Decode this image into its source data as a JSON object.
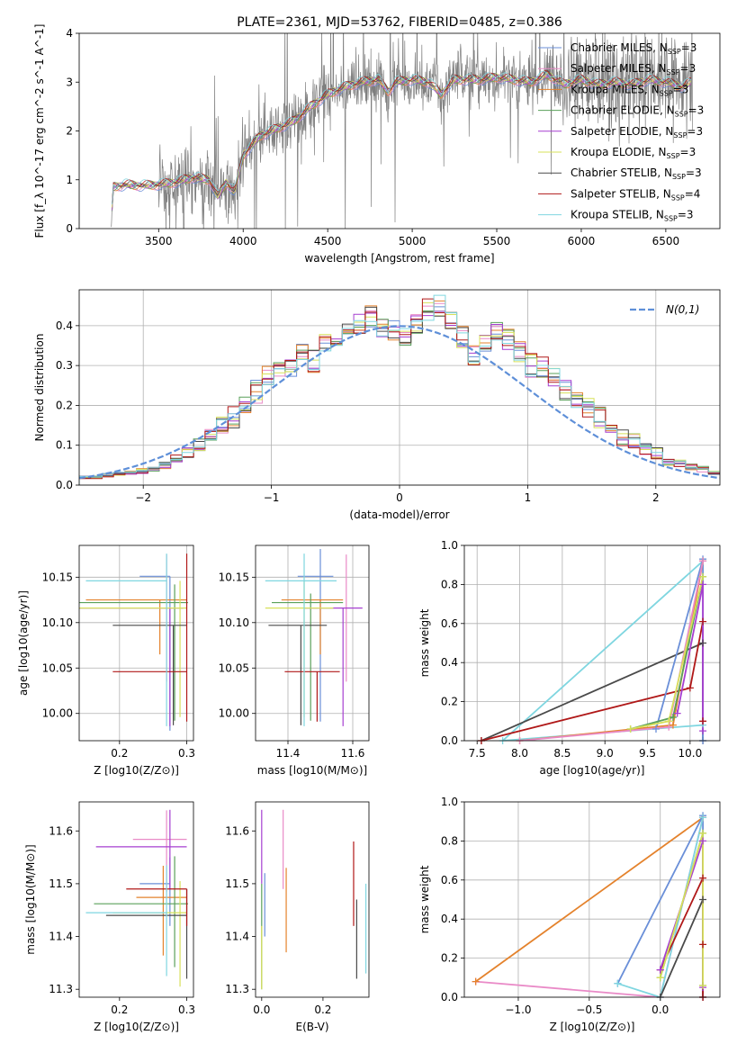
{
  "colors": {
    "chabrier_miles": "#6a8fd8",
    "salpeter_miles": "#e98ac7",
    "kroupa_miles": "#e4822c",
    "chabrier_elodie": "#5aa05a",
    "salpeter_elodie": "#a63fd0",
    "kroupa_elodie": "#d7e05a",
    "chabrier_stelib": "#4a4a4a",
    "salpeter_stelib": "#b01818",
    "kroupa_stelib": "#7fd6e0",
    "spectrum": "#7f7f7f",
    "normal": "#5e8fd8",
    "grid": "#b0b0b0"
  },
  "legend_series": [
    {
      "key": "chabrier_miles",
      "name": "Chabrier MILES, N",
      "n": "3"
    },
    {
      "key": "salpeter_miles",
      "name": "Salpeter MILES, N",
      "n": "3"
    },
    {
      "key": "kroupa_miles",
      "name": "Kroupa MILES, N",
      "n": "3"
    },
    {
      "key": "chabrier_elodie",
      "name": "Chabrier ELODIE, N",
      "n": "3"
    },
    {
      "key": "salpeter_elodie",
      "name": "Salpeter ELODIE, N",
      "n": "3"
    },
    {
      "key": "kroupa_elodie",
      "name": "Kroupa ELODIE, N",
      "n": "3"
    },
    {
      "key": "chabrier_stelib",
      "name": "Chabrier STELIB, N",
      "n": "3"
    },
    {
      "key": "salpeter_stelib",
      "name": "Salpeter STELIB, N",
      "n": "4"
    },
    {
      "key": "kroupa_stelib",
      "name": "Kroupa STELIB, N",
      "n": "3"
    }
  ],
  "legend_subscript": "SSP",
  "chart_data": [
    {
      "id": "spectrum",
      "type": "line",
      "title": "PLATE=2361, MJD=53762, FIBERID=0485, z=0.386",
      "xlabel": "wavelength [Angstrom, rest frame]",
      "ylabel": "Flux [f_λ 10^-17 erg cm^-2 s^-1 A^-1]",
      "xlim": [
        3030,
        6820
      ],
      "ylim": [
        0,
        4
      ],
      "xticks": [
        3500,
        4000,
        4500,
        5000,
        5500,
        6000,
        6500
      ],
      "yticks": [
        0,
        1,
        2,
        3,
        4
      ],
      "continuum": [
        [
          3220,
          0.0
        ],
        [
          3230,
          0.85
        ],
        [
          3300,
          0.9
        ],
        [
          3400,
          0.88
        ],
        [
          3500,
          0.9
        ],
        [
          3600,
          0.95
        ],
        [
          3700,
          1.05
        ],
        [
          3800,
          1.0
        ],
        [
          3850,
          0.65
        ],
        [
          3900,
          0.95
        ],
        [
          3950,
          0.75
        ],
        [
          4000,
          1.5
        ],
        [
          4100,
          1.9
        ],
        [
          4200,
          2.05
        ],
        [
          4300,
          2.2
        ],
        [
          4400,
          2.5
        ],
        [
          4500,
          2.75
        ],
        [
          4600,
          2.9
        ],
        [
          4700,
          3.0
        ],
        [
          4800,
          3.05
        ],
        [
          4860,
          2.8
        ],
        [
          4900,
          3.0
        ],
        [
          5000,
          3.05
        ],
        [
          5100,
          3.0
        ],
        [
          5170,
          2.75
        ],
        [
          5250,
          3.05
        ],
        [
          5400,
          3.05
        ],
        [
          5500,
          3.1
        ],
        [
          5600,
          3.05
        ],
        [
          5700,
          3.0
        ],
        [
          5800,
          3.15
        ],
        [
          5900,
          2.95
        ],
        [
          6000,
          3.05
        ],
        [
          6100,
          2.95
        ],
        [
          6200,
          3.0
        ],
        [
          6300,
          2.95
        ],
        [
          6400,
          3.05
        ],
        [
          6500,
          3.0
        ],
        [
          6600,
          2.9
        ],
        [
          6650,
          3.0
        ]
      ]
    },
    {
      "id": "residual_histogram",
      "type": "area",
      "xlabel": "(data-model)/error",
      "ylabel": "Normed distribution",
      "xlim": [
        -2.5,
        2.5
      ],
      "ylim": [
        0,
        0.49
      ],
      "xticks": [
        -2,
        -1,
        0,
        1,
        2
      ],
      "yticks": [
        0.0,
        0.1,
        0.2,
        0.3,
        0.4
      ],
      "normal_label": "N(0,1)",
      "series_values": [
        0.02,
        0.02,
        0.025,
        0.03,
        0.03,
        0.035,
        0.04,
        0.05,
        0.065,
        0.08,
        0.1,
        0.12,
        0.145,
        0.17,
        0.2,
        0.235,
        0.27,
        0.28,
        0.3,
        0.33,
        0.31,
        0.35,
        0.36,
        0.39,
        0.4,
        0.42,
        0.4,
        0.39,
        0.37,
        0.41,
        0.44,
        0.45,
        0.41,
        0.37,
        0.33,
        0.35,
        0.38,
        0.37,
        0.33,
        0.3,
        0.3,
        0.27,
        0.24,
        0.22,
        0.2,
        0.17,
        0.14,
        0.12,
        0.11,
        0.09,
        0.08,
        0.06,
        0.055,
        0.045,
        0.04,
        0.03
      ]
    },
    {
      "id": "age_vs_Z",
      "type": "scatter",
      "xlabel": "Z [log10(Z/Z⊙)]",
      "ylabel": "age  [log10(age/yr)]",
      "xlim": [
        0.14,
        0.31
      ],
      "ylim": [
        9.97,
        10.185
      ],
      "xticks": [
        0.2,
        0.3
      ],
      "yticks": [
        10.0,
        10.05,
        10.1,
        10.15
      ],
      "points": [
        {
          "key": "chabrier_miles",
          "x": 0.275,
          "y": 10.151,
          "xerr": [
            0.045,
            0.0
          ],
          "yerr": [
            0.17,
            0.0
          ]
        },
        {
          "key": "salpeter_miles",
          "x": 0.27,
          "y": 10.105,
          "xerr": [
            0.0,
            0.0
          ],
          "yerr": [
            0.07,
            0.07
          ]
        },
        {
          "key": "kroupa_miles",
          "x": 0.26,
          "y": 10.125,
          "xerr": [
            0.11,
            0.04
          ],
          "yerr": [
            0.06,
            0.0
          ]
        },
        {
          "key": "chabrier_elodie",
          "x": 0.282,
          "y": 10.122,
          "xerr": [
            0.16,
            0.02
          ],
          "yerr": [
            0.13,
            0.02
          ]
        },
        {
          "key": "salpeter_elodie",
          "x": 0.275,
          "y": 10.116,
          "xerr": [
            0.17,
            0.02
          ],
          "yerr": [
            0.13,
            0.0
          ]
        },
        {
          "key": "kroupa_elodie",
          "x": 0.29,
          "y": 10.116,
          "xerr": [
            0.15,
            0.01
          ],
          "yerr": [
            0.12,
            0.03
          ]
        },
        {
          "key": "chabrier_stelib",
          "x": 0.28,
          "y": 10.097,
          "xerr": [
            0.09,
            0.02
          ],
          "yerr": [
            0.11,
            0.0
          ]
        },
        {
          "key": "salpeter_stelib",
          "x": 0.3,
          "y": 10.046,
          "xerr": [
            0.11,
            0.0
          ],
          "yerr": [
            0.055,
            0.13
          ]
        },
        {
          "key": "kroupa_stelib",
          "x": 0.27,
          "y": 10.146,
          "xerr": [
            0.12,
            0.0
          ],
          "yerr": [
            0.16,
            0.03
          ]
        }
      ]
    },
    {
      "id": "age_vs_mass",
      "type": "scatter",
      "xlabel": "mass [log10(M/M⊙)]",
      "ylabel": "",
      "xlim": [
        11.3,
        11.65
      ],
      "ylim": [
        9.97,
        10.185
      ],
      "xticks": [
        11.4,
        11.6
      ],
      "yticks": [
        10.0,
        10.05,
        10.1,
        10.15
      ],
      "points": [
        {
          "key": "chabrier_miles",
          "x": 11.5,
          "y": 10.151,
          "xerr": [
            0.07,
            0.04
          ],
          "yerr": [
            0.16,
            0.03
          ]
        },
        {
          "key": "salpeter_miles",
          "x": 11.58,
          "y": 10.105,
          "xerr": [
            0.0,
            0.0
          ],
          "yerr": [
            0.07,
            0.07
          ]
        },
        {
          "key": "kroupa_miles",
          "x": 11.5,
          "y": 10.125,
          "xerr": [
            0.12,
            0.07
          ],
          "yerr": [
            0.06,
            0.0
          ]
        },
        {
          "key": "chabrier_elodie",
          "x": 11.47,
          "y": 10.122,
          "xerr": [
            0.12,
            0.1
          ],
          "yerr": [
            0.13,
            0.01
          ]
        },
        {
          "key": "salpeter_elodie",
          "x": 11.57,
          "y": 10.116,
          "xerr": [
            0.12,
            0.06
          ],
          "yerr": [
            0.13,
            0.0
          ]
        },
        {
          "key": "kroupa_elodie",
          "x": 11.45,
          "y": 10.116,
          "xerr": [
            0.12,
            0.09
          ],
          "yerr": [
            0.12,
            0.03
          ]
        },
        {
          "key": "chabrier_stelib",
          "x": 11.44,
          "y": 10.097,
          "xerr": [
            0.1,
            0.08
          ],
          "yerr": [
            0.11,
            0.0
          ]
        },
        {
          "key": "salpeter_stelib",
          "x": 11.49,
          "y": 10.046,
          "xerr": [
            0.1,
            0.07
          ],
          "yerr": [
            0.055,
            0.0
          ]
        },
        {
          "key": "kroupa_stelib",
          "x": 11.45,
          "y": 10.146,
          "xerr": [
            0.12,
            0.1
          ],
          "yerr": [
            0.16,
            0.03
          ]
        }
      ]
    },
    {
      "id": "weight_vs_age",
      "type": "line",
      "xlabel": "age  [log10(age/yr)]",
      "ylabel": "mass weight",
      "xlim": [
        7.35,
        10.35
      ],
      "ylim": [
        0,
        1
      ],
      "xticks": [
        7.5,
        8.0,
        8.5,
        9.0,
        9.5,
        10.0
      ],
      "yticks": [
        0.0,
        0.2,
        0.4,
        0.6,
        0.8,
        1.0
      ],
      "series": [
        {
          "key": "kroupa_stelib",
          "x": [
            10.15,
            7.8,
            10.15
          ],
          "y": [
            0.92,
            0.0,
            0.08
          ]
        },
        {
          "key": "chabrier_stelib",
          "x": [
            7.55,
            10.15,
            10.15
          ],
          "y": [
            0.0,
            0.5,
            0.0
          ]
        },
        {
          "key": "salpeter_stelib",
          "x": [
            7.55,
            10.0,
            10.15,
            10.15
          ],
          "y": [
            0.0,
            0.27,
            0.61,
            0.1
          ]
        },
        {
          "key": "chabrier_miles",
          "x": [
            9.6,
            10.15,
            10.15
          ],
          "y": [
            0.06,
            0.93,
            0.0
          ]
        },
        {
          "key": "kroupa_miles",
          "x": [
            8.0,
            9.8,
            10.15
          ],
          "y": [
            0.0,
            0.08,
            0.92
          ]
        },
        {
          "key": "salpeter_miles",
          "x": [
            8.0,
            9.75,
            10.15
          ],
          "y": [
            0.0,
            0.07,
            0.92
          ]
        },
        {
          "key": "chabrier_elodie",
          "x": [
            9.3,
            9.8,
            10.15
          ],
          "y": [
            0.06,
            0.12,
            0.84
          ]
        },
        {
          "key": "salpeter_elodie",
          "x": [
            9.85,
            10.15,
            10.15
          ],
          "y": [
            0.14,
            0.8,
            0.05
          ]
        },
        {
          "key": "kroupa_elodie",
          "x": [
            9.3,
            9.75,
            10.15
          ],
          "y": [
            0.06,
            0.1,
            0.84
          ]
        }
      ]
    },
    {
      "id": "mass_vs_Z",
      "type": "scatter",
      "xlabel": "Z [log10(Z/Z⊙)]",
      "ylabel": "mass [log10(M/M⊙)]",
      "xlim": [
        0.14,
        0.31
      ],
      "ylim": [
        11.285,
        11.655
      ],
      "xticks": [
        0.2,
        0.3
      ],
      "yticks": [
        11.3,
        11.4,
        11.5,
        11.6
      ],
      "points": [
        {
          "key": "chabrier_miles",
          "x": 0.275,
          "y": 11.5,
          "xerr": [
            0.045,
            0.0
          ],
          "yerr": [
            0.08,
            0.05
          ]
        },
        {
          "key": "salpeter_miles",
          "x": 0.27,
          "y": 11.584,
          "xerr": [
            0.05,
            0.03
          ],
          "yerr": [
            0.1,
            0.055
          ]
        },
        {
          "key": "kroupa_miles",
          "x": 0.265,
          "y": 11.474,
          "xerr": [
            0.04,
            0.035
          ],
          "yerr": [
            0.11,
            0.06
          ]
        },
        {
          "key": "chabrier_elodie",
          "x": 0.282,
          "y": 11.462,
          "xerr": [
            0.12,
            0.02
          ],
          "yerr": [
            0.12,
            0.09
          ]
        },
        {
          "key": "salpeter_elodie",
          "x": 0.275,
          "y": 11.57,
          "xerr": [
            0.11,
            0.025
          ],
          "yerr": [
            0.08,
            0.07
          ]
        },
        {
          "key": "kroupa_elodie",
          "x": 0.29,
          "y": 11.445,
          "xerr": [
            0.1,
            0.01
          ],
          "yerr": [
            0.14,
            0.06
          ]
        },
        {
          "key": "chabrier_stelib",
          "x": 0.3,
          "y": 11.44,
          "xerr": [
            0.12,
            0.0
          ],
          "yerr": [
            0.12,
            0.05
          ]
        },
        {
          "key": "salpeter_stelib",
          "x": 0.3,
          "y": 11.49,
          "xerr": [
            0.09,
            0.0
          ],
          "yerr": [
            0.07,
            0.0
          ]
        },
        {
          "key": "kroupa_stelib",
          "x": 0.27,
          "y": 11.445,
          "xerr": [
            0.12,
            0.0
          ],
          "yerr": [
            0.12,
            0.09
          ]
        }
      ]
    },
    {
      "id": "mass_vs_EBV",
      "type": "scatter",
      "xlabel": "E(B-V)",
      "ylabel": "",
      "xlim": [
        -0.02,
        0.35
      ],
      "ylim": [
        11.285,
        11.655
      ],
      "xticks": [
        0.0,
        0.2
      ],
      "yticks": [
        11.3,
        11.4,
        11.5,
        11.6
      ],
      "points": [
        {
          "key": "chabrier_miles",
          "x": 0.01,
          "y": 11.46,
          "yerr": [
            0.06,
            0.06
          ]
        },
        {
          "key": "salpeter_miles",
          "x": 0.07,
          "y": 11.57,
          "yerr": [
            0.08,
            0.07
          ]
        },
        {
          "key": "kroupa_miles",
          "x": 0.08,
          "y": 11.45,
          "yerr": [
            0.08,
            0.08
          ]
        },
        {
          "key": "chabrier_elodie",
          "x": 0.0,
          "y": 11.4,
          "yerr": [
            0.1,
            0.1
          ]
        },
        {
          "key": "salpeter_elodie",
          "x": 0.0,
          "y": 11.55,
          "yerr": [
            0.05,
            0.09
          ]
        },
        {
          "key": "kroupa_elodie",
          "x": 0.0,
          "y": 11.36,
          "yerr": [
            0.06,
            0.06
          ]
        },
        {
          "key": "chabrier_stelib",
          "x": 0.31,
          "y": 11.47,
          "yerr": [
            0.15,
            0.0
          ]
        },
        {
          "key": "salpeter_stelib",
          "x": 0.3,
          "y": 11.5,
          "yerr": [
            0.08,
            0.08
          ]
        },
        {
          "key": "kroupa_stelib",
          "x": 0.34,
          "y": 11.42,
          "yerr": [
            0.09,
            0.08
          ]
        }
      ]
    },
    {
      "id": "weight_vs_Z",
      "type": "line",
      "xlabel": "Z [log10(Z/Z⊙)]",
      "ylabel": "mass weight",
      "xlim": [
        -1.38,
        0.42
      ],
      "ylim": [
        0,
        1
      ],
      "xticks": [
        -1.0,
        -0.5,
        0.0
      ],
      "yticks": [
        0.0,
        0.2,
        0.4,
        0.6,
        0.8,
        1.0
      ],
      "series": [
        {
          "key": "salpeter_miles",
          "x": [
            -1.3,
            0.0,
            0.3
          ],
          "y": [
            0.08,
            0.0,
            0.92
          ]
        },
        {
          "key": "kroupa_miles",
          "x": [
            -1.3,
            0.3
          ],
          "y": [
            0.08,
            0.92
          ]
        },
        {
          "key": "chabrier_miles",
          "x": [
            -0.3,
            0.3,
            0.3
          ],
          "y": [
            0.07,
            0.93,
            0.0
          ]
        },
        {
          "key": "kroupa_stelib",
          "x": [
            -0.3,
            0.0,
            0.3
          ],
          "y": [
            0.07,
            0.0,
            0.92
          ]
        },
        {
          "key": "chabrier_stelib",
          "x": [
            0.0,
            0.3,
            0.3
          ],
          "y": [
            0.0,
            0.5,
            0.0
          ]
        },
        {
          "key": "salpeter_stelib",
          "x": [
            0.0,
            0.3,
            0.3,
            0.3
          ],
          "y": [
            0.14,
            0.61,
            0.27,
            0.0
          ]
        },
        {
          "key": "chabrier_elodie",
          "x": [
            0.0,
            0.3,
            0.3
          ],
          "y": [
            0.1,
            0.84,
            0.06
          ]
        },
        {
          "key": "salpeter_elodie",
          "x": [
            0.0,
            0.3,
            0.3
          ],
          "y": [
            0.14,
            0.8,
            0.05
          ]
        },
        {
          "key": "kroupa_elodie",
          "x": [
            0.0,
            0.3,
            0.3
          ],
          "y": [
            0.1,
            0.84,
            0.06
          ]
        }
      ]
    }
  ]
}
